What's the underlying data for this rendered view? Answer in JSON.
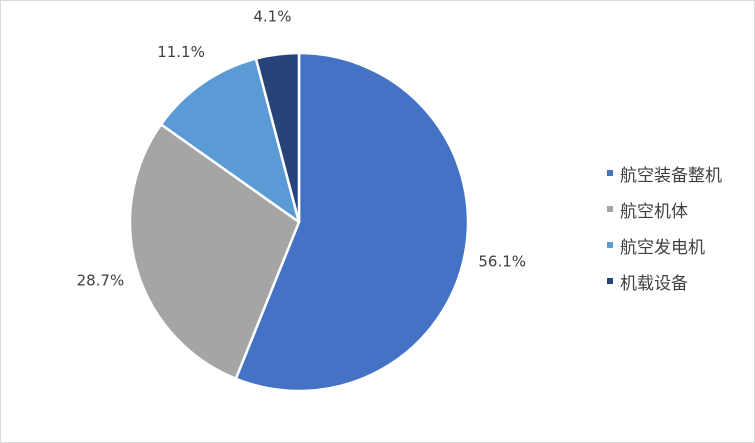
{
  "chart_data": {
    "type": "pie",
    "categories": [
      "航空装备整机",
      "航空机体",
      "航空发电机",
      "机载设备"
    ],
    "values": [
      56.1,
      28.7,
      11.1,
      4.1
    ],
    "labels": [
      "56.1%",
      "28.7%",
      "11.1%",
      "4.1%"
    ],
    "colors": [
      "#4472c4",
      "#a5a5a5",
      "#5b9bd5",
      "#264478"
    ],
    "start_angle_deg": 0,
    "direction": "clockwise",
    "legend_position": "right",
    "title": ""
  },
  "legend": {
    "items": [
      {
        "label": "航空装备整机",
        "color": "#4472c4"
      },
      {
        "label": "航空机体",
        "color": "#a5a5a5"
      },
      {
        "label": "航空发电机",
        "color": "#5b9bd5"
      },
      {
        "label": "机载设备",
        "color": "#264478"
      }
    ]
  }
}
